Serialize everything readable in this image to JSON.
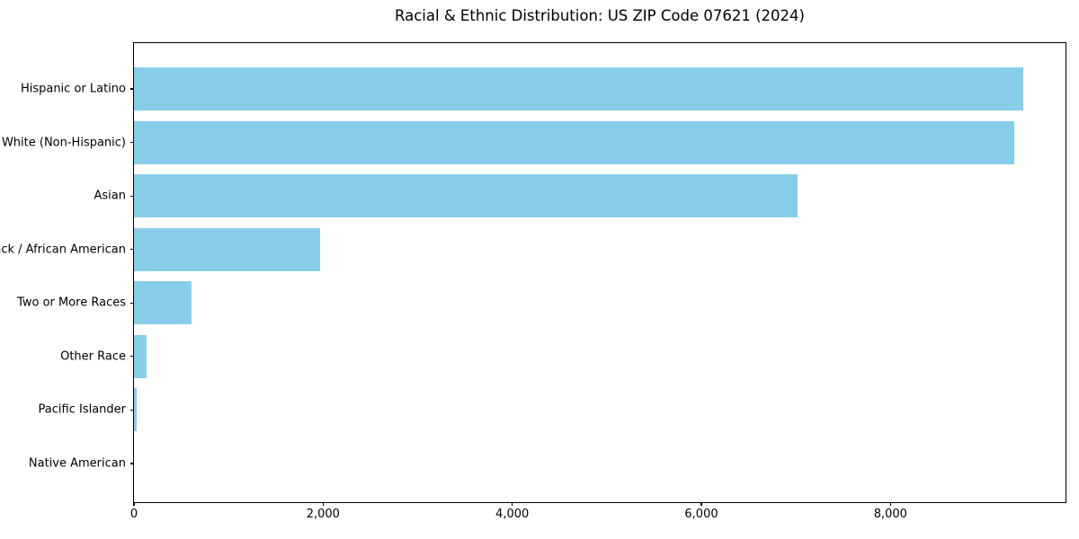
{
  "chart_data": {
    "type": "bar",
    "orientation": "horizontal",
    "title": "Racial & Ethnic Distribution: US ZIP Code 07621 (2024)",
    "categories": [
      "Hispanic or Latino",
      "White (Non-Hispanic)",
      "Asian",
      "Black / African American",
      "Two or More Races",
      "Other Race",
      "Pacific Islander",
      "Native American"
    ],
    "values": [
      9400,
      9310,
      7020,
      1970,
      605,
      135,
      30,
      0
    ],
    "xlabel": "",
    "ylabel": "",
    "xlim": [
      0,
      9870
    ],
    "xticks": [
      {
        "value": 0,
        "label": "0"
      },
      {
        "value": 2000,
        "label": "2,000"
      },
      {
        "value": 4000,
        "label": "4,000"
      },
      {
        "value": 6000,
        "label": "6,000"
      },
      {
        "value": 8000,
        "label": "8,000"
      }
    ],
    "bar_color": "#87CEEB",
    "spine_color": "#000000",
    "text_color": "#000000",
    "background": "#ffffff",
    "grid": false,
    "legend": null
  }
}
